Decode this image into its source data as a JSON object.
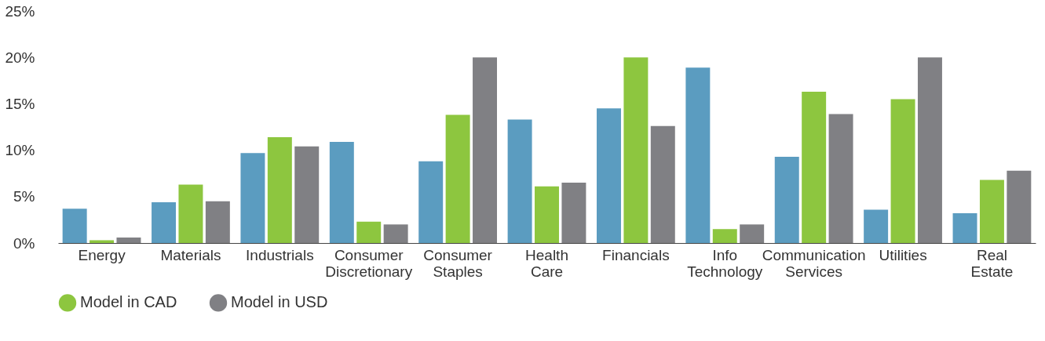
{
  "chart_data": {
    "type": "bar",
    "categories": [
      "Energy",
      "Materials",
      "Industrials",
      "Consumer Discretionary",
      "Consumer Staples",
      "Health Care",
      "Financials",
      "Info Technology",
      "Communication Services",
      "Utilities",
      "Real Estate"
    ],
    "series": [
      {
        "color": "#5b9cc0",
        "values": [
          3.7,
          4.4,
          9.7,
          10.9,
          8.8,
          13.3,
          14.5,
          18.9,
          9.3,
          3.6,
          3.2
        ]
      },
      {
        "name": "Model in CAD",
        "color": "#8dc63f",
        "values": [
          0.3,
          6.3,
          11.4,
          2.3,
          13.8,
          6.1,
          20,
          1.5,
          16.3,
          15.5,
          6.8
        ]
      },
      {
        "name": "Model in USD",
        "color": "#808084",
        "values": [
          0.6,
          4.5,
          10.4,
          2.0,
          20,
          6.5,
          12.6,
          2.0,
          13.9,
          20,
          7.8
        ]
      }
    ],
    "ylim": [
      0,
      25
    ],
    "yticks": [
      {
        "value": 0,
        "label": "0%"
      },
      {
        "value": 5,
        "label": "5%"
      },
      {
        "value": 10,
        "label": "10%"
      },
      {
        "value": 15,
        "label": "15%"
      },
      {
        "value": 20,
        "label": "20%"
      },
      {
        "value": 25,
        "label": "25%"
      }
    ],
    "grid": false,
    "legend": "bottom"
  }
}
